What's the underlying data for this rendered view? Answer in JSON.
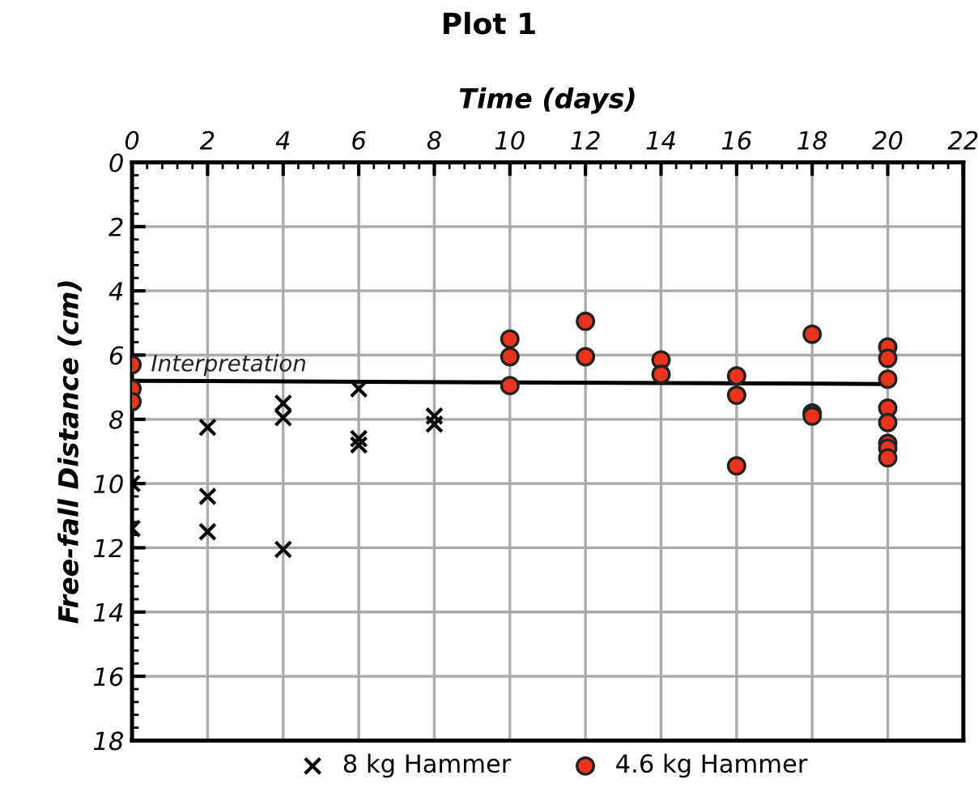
{
  "chart_data": {
    "type": "scatter",
    "title": "Plot 1",
    "xlabel": "Time (days)",
    "ylabel": "Free-fall Distance (cm)",
    "xlim": [
      0,
      22
    ],
    "xticks": [
      0,
      2,
      4,
      6,
      8,
      10,
      12,
      14,
      16,
      18,
      20,
      22
    ],
    "ylim": [
      18,
      0
    ],
    "yticks": [
      0,
      2,
      4,
      6,
      8,
      10,
      12,
      14,
      16,
      18
    ],
    "grid": true,
    "legend": "bottom",
    "series": [
      {
        "name": "8 kg Hammer",
        "color": "#000000",
        "marker": "cross",
        "x": [
          0,
          0,
          2,
          2,
          2,
          4,
          4,
          4,
          6,
          6,
          6,
          8,
          8
        ],
        "values": [
          10.0,
          11.4,
          8.25,
          10.4,
          11.5,
          7.5,
          7.95,
          12.05,
          7.05,
          8.6,
          8.8,
          7.9,
          8.15
        ]
      },
      {
        "name": "4.6 kg Hammer",
        "color": "#e8341c",
        "marker": "circle",
        "x": [
          0,
          0,
          0,
          10,
          10,
          10,
          12,
          12,
          14,
          14,
          16,
          16,
          16,
          18,
          18,
          18,
          20,
          20,
          20,
          20,
          20,
          20,
          20,
          20
        ],
        "values": [
          6.3,
          7.05,
          7.45,
          5.5,
          6.05,
          6.95,
          4.95,
          6.05,
          6.15,
          6.6,
          6.65,
          7.25,
          9.45,
          5.35,
          7.8,
          7.9,
          5.75,
          6.1,
          6.75,
          7.65,
          8.1,
          8.75,
          8.9,
          9.2
        ]
      },
      {
        "name": "Interpretation",
        "type": "line",
        "color": "#000000",
        "marker": "none",
        "x": [
          0,
          20
        ],
        "values": [
          6.8,
          6.9
        ]
      }
    ]
  }
}
